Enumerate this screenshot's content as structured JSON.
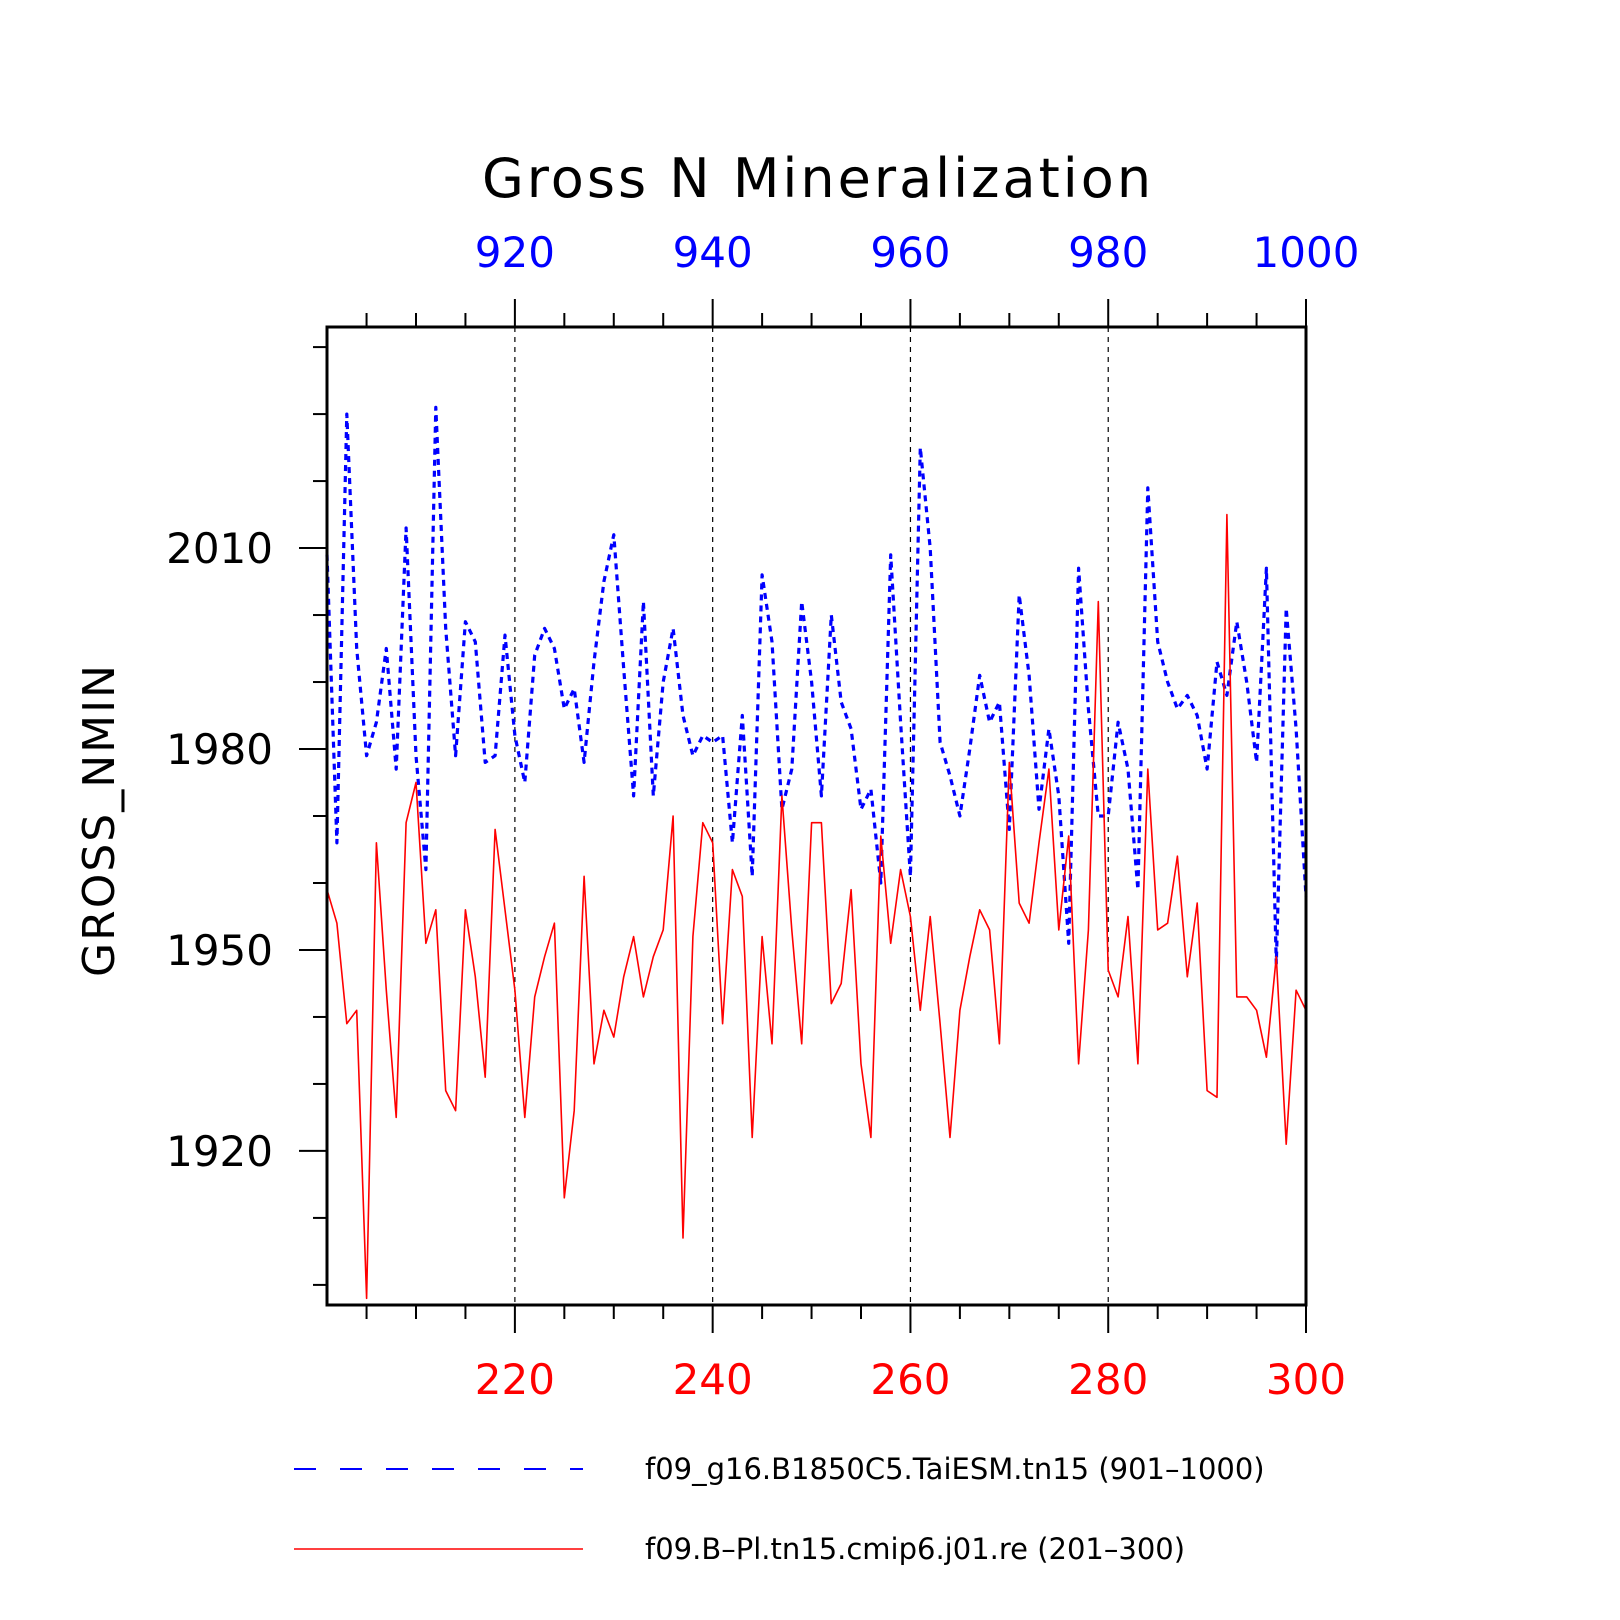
{
  "chart_data": {
    "type": "line",
    "title": "Gross N Mineralization",
    "ylabel": "GROSS_NMIN",
    "ylim": [
      1897,
      2043
    ],
    "y_ticks": [
      1920,
      1950,
      1980,
      2010
    ],
    "grid": "vertical dashed at major x ticks",
    "legend_position": "bottom",
    "top_axis": {
      "color": "#0000ff",
      "xlim": [
        901,
        1000
      ],
      "ticks": [
        920,
        940,
        960,
        980,
        1000
      ],
      "tick_labels": [
        "920",
        "940",
        "960",
        "980",
        "1000"
      ]
    },
    "bottom_axis": {
      "color": "#ff0000",
      "xlim": [
        201,
        300
      ],
      "ticks": [
        220,
        240,
        260,
        280,
        300
      ],
      "tick_labels": [
        "220",
        "240",
        "260",
        "280",
        "300"
      ]
    },
    "series": [
      {
        "name": "f09_g16.B1850C5.TaiESM.tn15 (901–1000)",
        "color": "#0000ff",
        "style": "dashed",
        "axis": "top",
        "x_start": 901,
        "values": [
          2009,
          1966,
          2030,
          1995,
          1979,
          1984,
          1995,
          1977,
          2013,
          1979,
          1962,
          2031,
          1998,
          1979,
          1999,
          1996,
          1978,
          1979,
          1997,
          1982,
          1975,
          1994,
          1998,
          1995,
          1986,
          1989,
          1978,
          1993,
          2005,
          2012,
          1992,
          1973,
          2002,
          1973,
          1990,
          1998,
          1985,
          1979,
          1982,
          1981,
          1982,
          1966,
          1985,
          1961,
          2006,
          1996,
          1971,
          1977,
          2002,
          1990,
          1973,
          2000,
          1987,
          1983,
          1971,
          1974,
          1960,
          2009,
          1984,
          1961,
          2025,
          2010,
          1981,
          1976,
          1970,
          1980,
          1991,
          1984,
          1987,
          1968,
          2003,
          1991,
          1971,
          1983,
          1973,
          1951,
          2007,
          1986,
          1970,
          1970,
          1984,
          1977,
          1959,
          2019,
          1996,
          1990,
          1986,
          1988,
          1985,
          1977,
          1993,
          1988,
          1999,
          1990,
          1978,
          2007,
          1948,
          2001,
          1983,
          1958
        ]
      },
      {
        "name": "f09.B–Pl.tn15.cmip6.j01.re (201–300)",
        "color": "#ff0000",
        "style": "solid",
        "axis": "bottom",
        "x_start": 201,
        "values": [
          1959,
          1954,
          1939,
          1941,
          1898,
          1966,
          1944,
          1925,
          1969,
          1975,
          1951,
          1956,
          1929,
          1926,
          1956,
          1946,
          1931,
          1968,
          1956,
          1944,
          1925,
          1943,
          1949,
          1954,
          1913,
          1926,
          1961,
          1933,
          1941,
          1937,
          1946,
          1952,
          1943,
          1949,
          1953,
          1970,
          1907,
          1952,
          1969,
          1966,
          1939,
          1962,
          1958,
          1922,
          1952,
          1936,
          1973,
          1953,
          1936,
          1969,
          1969,
          1942,
          1945,
          1959,
          1933,
          1922,
          1967,
          1951,
          1962,
          1955,
          1941,
          1955,
          1939,
          1922,
          1941,
          1949,
          1956,
          1953,
          1936,
          1978,
          1957,
          1954,
          1966,
          1977,
          1953,
          1967,
          1933,
          1953,
          2002,
          1947,
          1943,
          1955,
          1933,
          1977,
          1953,
          1954,
          1964,
          1946,
          1957,
          1929,
          1928,
          2015,
          1943,
          1943,
          1941,
          1934,
          1949,
          1921,
          1944,
          1941
        ]
      }
    ]
  }
}
